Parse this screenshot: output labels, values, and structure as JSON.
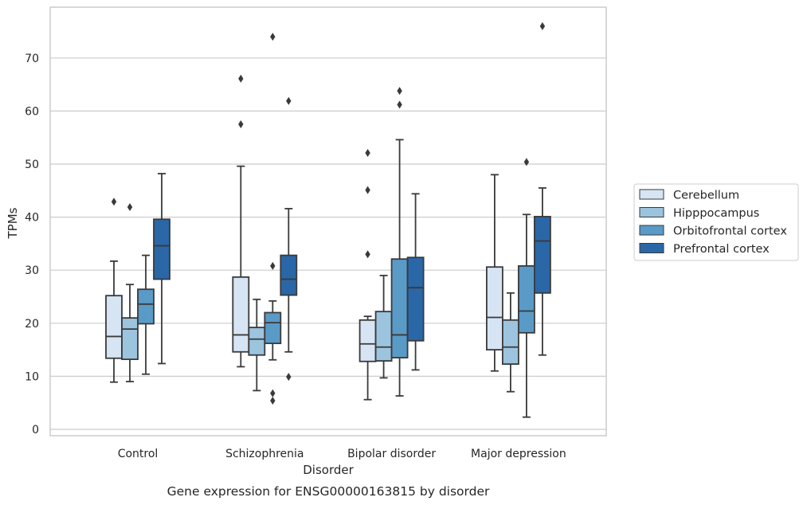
{
  "chart_data": {
    "type": "box",
    "caption": "Gene expression for ENSG00000163815 by disorder",
    "xlabel": "Disorder",
    "ylabel": "TPMs",
    "ylim": [
      -1.2,
      79.5
    ],
    "yticks": [
      0,
      10,
      20,
      30,
      40,
      50,
      60,
      70
    ],
    "grid": true,
    "legend_position": "right",
    "categories": [
      "Control",
      "Schizophrenia",
      "Bipolar disorder",
      "Major depression"
    ],
    "series": [
      {
        "name": "Cerebellum",
        "color": "#d6e4f3",
        "boxes": [
          {
            "whisker_low": 8.9,
            "q1": 13.4,
            "median": 17.5,
            "q3": 25.2,
            "whisker_high": 31.7,
            "outliers": [
              42.9
            ]
          },
          {
            "whisker_low": 11.8,
            "q1": 14.6,
            "median": 17.8,
            "q3": 28.7,
            "whisker_high": 49.6,
            "outliers": [
              57.5,
              66.1
            ]
          },
          {
            "whisker_low": 5.6,
            "q1": 12.8,
            "median": 16.1,
            "q3": 20.6,
            "whisker_high": 21.3,
            "outliers": [
              33.0,
              45.1,
              52.1
            ]
          },
          {
            "whisker_low": 11.0,
            "q1": 15.0,
            "median": 21.1,
            "q3": 30.6,
            "whisker_high": 48.0,
            "outliers": []
          }
        ]
      },
      {
        "name": "Hipppocampus",
        "color": "#9dc4de",
        "boxes": [
          {
            "whisker_low": 9.0,
            "q1": 13.2,
            "median": 18.9,
            "q3": 21.0,
            "whisker_high": 27.3,
            "outliers": [
              41.9
            ]
          },
          {
            "whisker_low": 7.3,
            "q1": 14.0,
            "median": 17.0,
            "q3": 19.2,
            "whisker_high": 24.5,
            "outliers": []
          },
          {
            "whisker_low": 9.7,
            "q1": 12.9,
            "median": 15.5,
            "q3": 22.2,
            "whisker_high": 29.0,
            "outliers": []
          },
          {
            "whisker_low": 7.1,
            "q1": 12.3,
            "median": 15.5,
            "q3": 20.6,
            "whisker_high": 25.7,
            "outliers": []
          }
        ]
      },
      {
        "name": "Orbitofrontal cortex",
        "color": "#5a9ac7",
        "boxes": [
          {
            "whisker_low": 10.4,
            "q1": 19.9,
            "median": 23.6,
            "q3": 26.4,
            "whisker_high": 32.8,
            "outliers": []
          },
          {
            "whisker_low": 13.1,
            "q1": 16.2,
            "median": 20.1,
            "q3": 22.0,
            "whisker_high": 24.2,
            "outliers": [
              5.4,
              6.8,
              30.8,
              74.0
            ]
          },
          {
            "whisker_low": 6.3,
            "q1": 13.5,
            "median": 17.8,
            "q3": 32.1,
            "whisker_high": 54.6,
            "outliers": [
              61.2,
              63.8
            ]
          },
          {
            "whisker_low": 2.3,
            "q1": 18.2,
            "median": 22.3,
            "q3": 30.8,
            "whisker_high": 40.5,
            "outliers": [
              50.4
            ]
          }
        ]
      },
      {
        "name": "Prefrontal cortex",
        "color": "#2a67a7",
        "boxes": [
          {
            "whisker_low": 12.4,
            "q1": 28.3,
            "median": 34.6,
            "q3": 39.6,
            "whisker_high": 48.2,
            "outliers": []
          },
          {
            "whisker_low": 14.6,
            "q1": 25.3,
            "median": 28.3,
            "q3": 32.8,
            "whisker_high": 41.6,
            "outliers": [
              9.9,
              61.9
            ]
          },
          {
            "whisker_low": 11.2,
            "q1": 16.7,
            "median": 26.7,
            "q3": 32.4,
            "whisker_high": 44.4,
            "outliers": []
          },
          {
            "whisker_low": 14.0,
            "q1": 25.7,
            "median": 35.5,
            "q3": 40.1,
            "whisker_high": 45.5,
            "outliers": [
              76.0
            ]
          }
        ]
      }
    ]
  }
}
